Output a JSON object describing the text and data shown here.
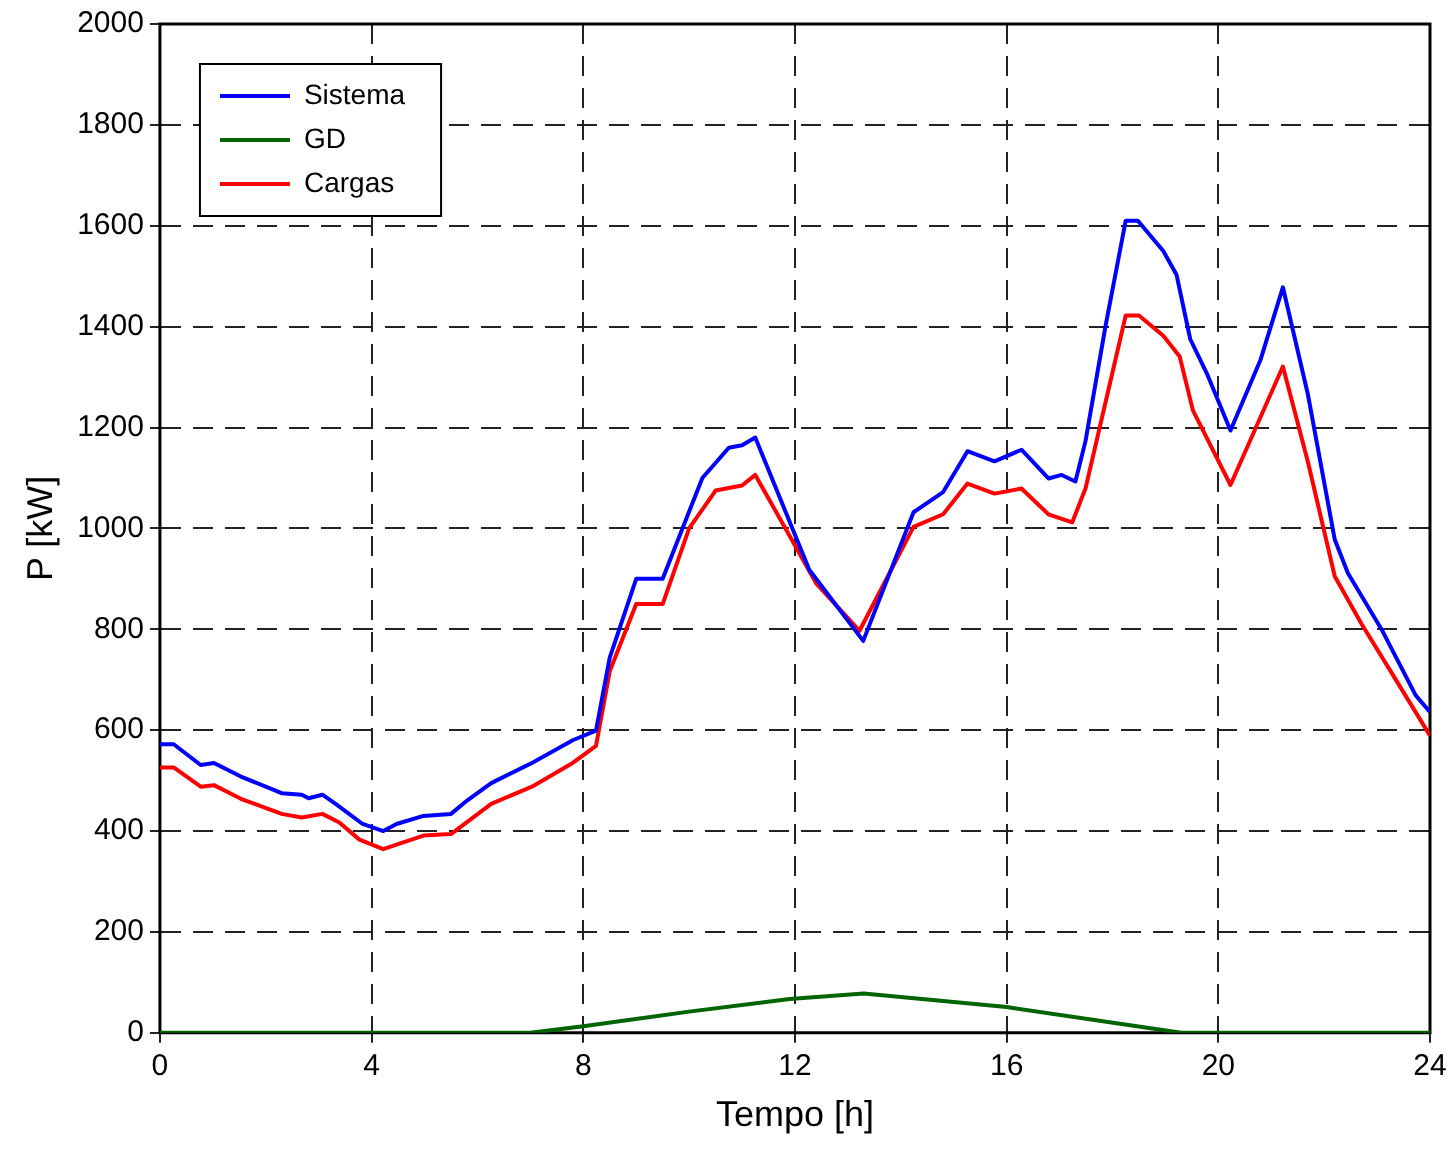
{
  "chart_data": {
    "type": "line",
    "xlabel": "Tempo [h]",
    "ylabel": "P [kW]",
    "xlim": [
      0,
      24
    ],
    "xticks": [
      0,
      4,
      8,
      12,
      16,
      20,
      24
    ],
    "ylim": [
      0,
      2000
    ],
    "yticks": [
      0,
      200,
      400,
      600,
      800,
      1000,
      1200,
      1400,
      1600,
      1800,
      2000
    ],
    "grid": true,
    "legend": "top left",
    "marker": "none",
    "line_style": "solid",
    "series": [
      {
        "name": "Sistema",
        "color": "#0000ff",
        "x": [
          0,
          0.26,
          0.77,
          1.02,
          1.53,
          2.3,
          2.68,
          2.81,
          3.07,
          3.32,
          3.83,
          4.22,
          4.47,
          4.98,
          5.5,
          5.81,
          6.26,
          7.03,
          7.8,
          8.24,
          8.5,
          9,
          9.5,
          10.25,
          10.75,
          11,
          11.25,
          12.27,
          13.29,
          14.24,
          14.8,
          15.26,
          15.77,
          16.28,
          16.79,
          17.04,
          17.3,
          17.49,
          17.87,
          18.25,
          18.48,
          18.96,
          19.21,
          19.47,
          19.78,
          20.23,
          20.8,
          21.22,
          21.69,
          22.2,
          22.45,
          23.1,
          23.73,
          24
        ],
        "values": [
          572,
          572,
          531,
          535,
          508,
          475,
          472,
          465,
          472,
          454,
          414,
          400,
          414,
          430,
          434,
          461,
          495,
          535,
          580,
          599,
          744,
          900,
          900,
          1100,
          1160,
          1165,
          1180,
          918,
          777,
          1032,
          1072,
          1153,
          1133,
          1156,
          1099,
          1106,
          1093,
          1173,
          1402,
          1610,
          1610,
          1550,
          1503,
          1375,
          1308,
          1194,
          1335,
          1478,
          1267,
          978,
          911,
          797,
          669,
          636
        ]
      },
      {
        "name": "GD",
        "color": "#006400",
        "x": [
          0,
          7,
          8,
          10,
          11.9,
          13.3,
          16,
          19.3,
          24
        ],
        "values": [
          0,
          0,
          13,
          42,
          67,
          78,
          51,
          0,
          0
        ]
      },
      {
        "name": "Cargas",
        "color": "#ff0000",
        "x": [
          0,
          0.26,
          0.77,
          1.02,
          1.53,
          2.3,
          2.68,
          3.07,
          3.39,
          3.77,
          4.22,
          4.47,
          4.98,
          5.5,
          6.26,
          7.03,
          7.8,
          8.24,
          8.5,
          9,
          9.5,
          10,
          10.5,
          11,
          11.25,
          11.9,
          12.4,
          13.22,
          14.24,
          14.8,
          15.26,
          15.77,
          16.28,
          16.79,
          17.24,
          17.49,
          18.25,
          18.5,
          18.96,
          19.27,
          19.52,
          20.23,
          21.22,
          21.69,
          22.2,
          22.71,
          23.22,
          24
        ],
        "values": [
          526,
          526,
          488,
          491,
          464,
          434,
          427,
          434,
          417,
          383,
          364,
          373,
          391,
          394,
          454,
          488,
          535,
          569,
          717,
          850,
          850,
          1000,
          1075,
          1085,
          1106,
          985,
          891,
          797,
          1003,
          1028,
          1089,
          1069,
          1079,
          1028,
          1012,
          1079,
          1422,
          1422,
          1382,
          1341,
          1234,
          1086,
          1321,
          1133,
          905,
          810,
          723,
          589
        ]
      }
    ]
  }
}
